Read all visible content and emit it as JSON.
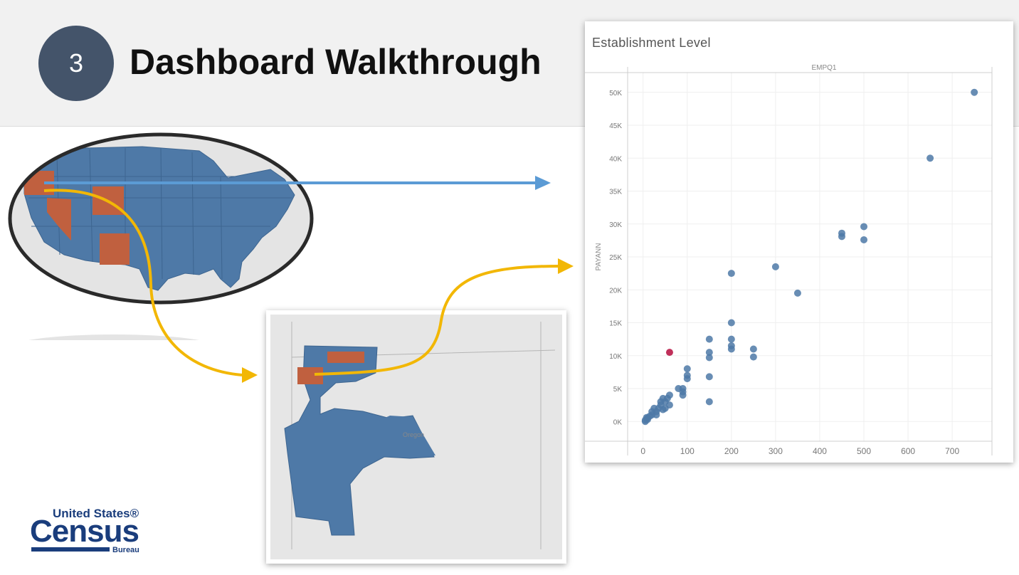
{
  "header": {
    "step_number": "3",
    "title": "Dashboard Walkthrough"
  },
  "logo": {
    "line1": "United States®",
    "line2": "Census",
    "line3": "Bureau"
  },
  "oregon_map": {
    "state_label": "Oregon"
  },
  "colors": {
    "region": "#4e79a7",
    "highlight": "#c0603f",
    "selected_point": "#c0305a",
    "blue_arrow": "#5b9bd5",
    "gold_arrow": "#f2b705"
  },
  "chart_data": {
    "type": "scatter",
    "title": "Establishment Level",
    "xlabel": "EMPQ1",
    "ylabel": "PAYANN",
    "xlim": [
      -35,
      790
    ],
    "ylim": [
      -3000,
      53000
    ],
    "x_ticks": [
      0,
      100,
      200,
      300,
      400,
      500,
      600,
      700
    ],
    "x_tick_labels": [
      "0",
      "100",
      "200",
      "300",
      "400",
      "500",
      "600",
      "700"
    ],
    "y_ticks": [
      0,
      5000,
      10000,
      15000,
      20000,
      25000,
      30000,
      35000,
      40000,
      45000,
      50000
    ],
    "y_tick_labels": [
      "0K",
      "5K",
      "10K",
      "15K",
      "20K",
      "25K",
      "30K",
      "35K",
      "40K",
      "45K",
      "50K"
    ],
    "grid": true,
    "points": [
      {
        "x": 750,
        "y": 50000
      },
      {
        "x": 650,
        "y": 40000
      },
      {
        "x": 500,
        "y": 29600
      },
      {
        "x": 500,
        "y": 27600
      },
      {
        "x": 450,
        "y": 28600
      },
      {
        "x": 450,
        "y": 28100
      },
      {
        "x": 300,
        "y": 23500
      },
      {
        "x": 350,
        "y": 19500
      },
      {
        "x": 200,
        "y": 22500
      },
      {
        "x": 200,
        "y": 15000
      },
      {
        "x": 200,
        "y": 12500
      },
      {
        "x": 200,
        "y": 11500
      },
      {
        "x": 200,
        "y": 11000
      },
      {
        "x": 250,
        "y": 11000
      },
      {
        "x": 250,
        "y": 9800
      },
      {
        "x": 150,
        "y": 12500
      },
      {
        "x": 150,
        "y": 10500
      },
      {
        "x": 150,
        "y": 9700
      },
      {
        "x": 150,
        "y": 6800
      },
      {
        "x": 150,
        "y": 3000
      },
      {
        "x": 100,
        "y": 8000
      },
      {
        "x": 100,
        "y": 7000
      },
      {
        "x": 100,
        "y": 6500
      },
      {
        "x": 90,
        "y": 5000
      },
      {
        "x": 90,
        "y": 4500
      },
      {
        "x": 90,
        "y": 4000
      },
      {
        "x": 80,
        "y": 5000
      },
      {
        "x": 60,
        "y": 4000
      },
      {
        "x": 55,
        "y": 3500
      },
      {
        "x": 50,
        "y": 3000
      },
      {
        "x": 45,
        "y": 3500
      },
      {
        "x": 40,
        "y": 3000
      },
      {
        "x": 40,
        "y": 2500
      },
      {
        "x": 50,
        "y": 2000
      },
      {
        "x": 45,
        "y": 1800
      },
      {
        "x": 35,
        "y": 2000
      },
      {
        "x": 30,
        "y": 1500
      },
      {
        "x": 25,
        "y": 2000
      },
      {
        "x": 20,
        "y": 1500
      },
      {
        "x": 20,
        "y": 1000
      },
      {
        "x": 15,
        "y": 800
      },
      {
        "x": 10,
        "y": 500
      },
      {
        "x": 10,
        "y": 300
      },
      {
        "x": 5,
        "y": 200
      },
      {
        "x": 5,
        "y": 0
      },
      {
        "x": 8,
        "y": 600
      },
      {
        "x": 30,
        "y": 1000
      },
      {
        "x": 60,
        "y": 2500
      }
    ],
    "highlighted_point": {
      "x": 60,
      "y": 10500
    }
  }
}
